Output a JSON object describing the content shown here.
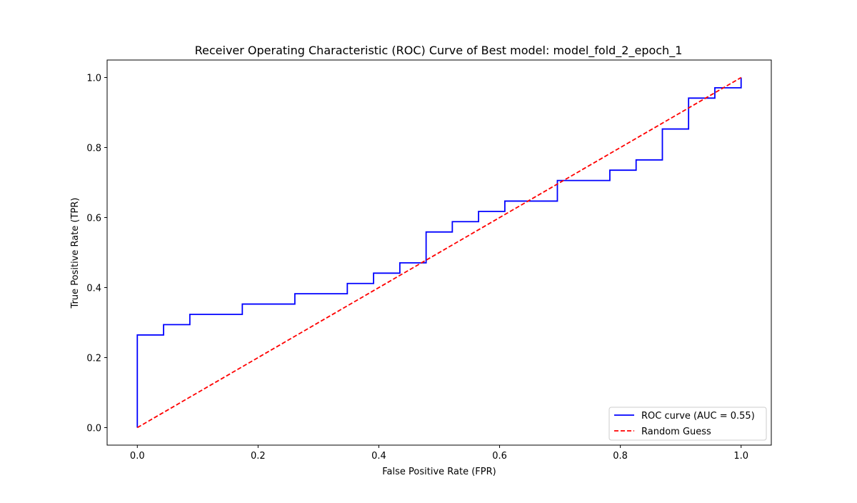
{
  "chart_data": {
    "type": "line",
    "title": "Receiver Operating Characteristic (ROC) Curve of Best model: model_fold_2_epoch_1",
    "xlabel": "False Positive Rate (FPR)",
    "ylabel": "True Positive Rate (TPR)",
    "xlim": [
      -0.05,
      1.05
    ],
    "ylim": [
      -0.05,
      1.05
    ],
    "xticks": [
      0.0,
      0.2,
      0.4,
      0.6,
      0.8,
      1.0
    ],
    "xtick_labels": [
      "0.0",
      "0.2",
      "0.4",
      "0.6",
      "0.8",
      "1.0"
    ],
    "yticks": [
      0.0,
      0.2,
      0.4,
      0.6,
      0.8,
      1.0
    ],
    "ytick_labels": [
      "0.0",
      "0.2",
      "0.4",
      "0.6",
      "0.8",
      "1.0"
    ],
    "grid": false,
    "legend_position": "lower-right",
    "series": [
      {
        "name": "ROC curve (AUC = 0.55)",
        "color": "#0000ff",
        "style": "solid",
        "x": [
          0.0,
          0.0,
          0.0435,
          0.0435,
          0.087,
          0.087,
          0.1739,
          0.1739,
          0.2609,
          0.2609,
          0.3478,
          0.3478,
          0.3913,
          0.3913,
          0.4348,
          0.4348,
          0.4783,
          0.4783,
          0.5217,
          0.5217,
          0.5652,
          0.5652,
          0.6087,
          0.6087,
          0.6957,
          0.6957,
          0.7826,
          0.7826,
          0.8261,
          0.8261,
          0.8696,
          0.8696,
          0.913,
          0.913,
          0.9565,
          0.9565,
          1.0,
          1.0
        ],
        "y": [
          0.0,
          0.2647,
          0.2647,
          0.2941,
          0.2941,
          0.3235,
          0.3235,
          0.3529,
          0.3529,
          0.3824,
          0.3824,
          0.4118,
          0.4118,
          0.4412,
          0.4412,
          0.4706,
          0.4706,
          0.5588,
          0.5588,
          0.5882,
          0.5882,
          0.6176,
          0.6176,
          0.6471,
          0.6471,
          0.7059,
          0.7059,
          0.7353,
          0.7353,
          0.7647,
          0.7647,
          0.8529,
          0.8529,
          0.9412,
          0.9412,
          0.9706,
          0.9706,
          1.0
        ]
      },
      {
        "name": "Random Guess",
        "color": "#ff0000",
        "style": "dashed",
        "x": [
          0.0,
          1.0
        ],
        "y": [
          0.0,
          1.0
        ]
      }
    ]
  }
}
